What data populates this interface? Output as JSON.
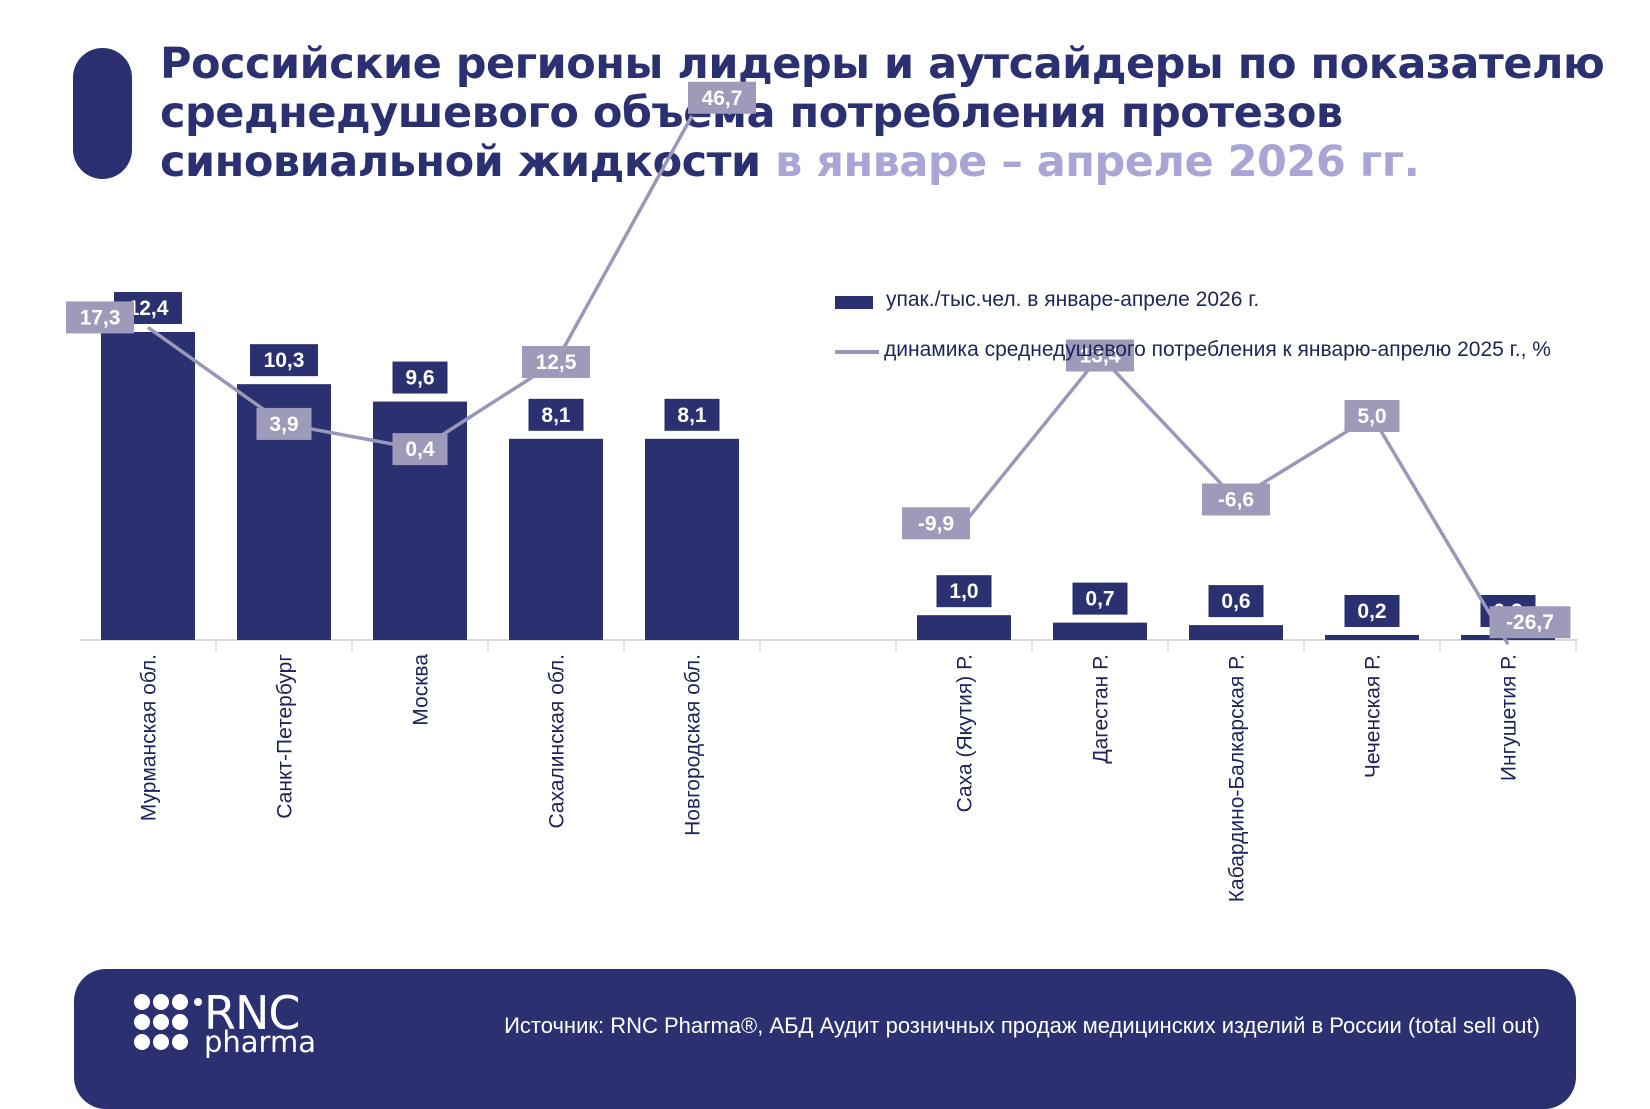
{
  "header": {
    "title_main": "Российские регионы лидеры и аутсайдеры по показателю среднедушевого объёма потребления протезов синовиальной жидкости",
    "title_highlight": "в январе – апреле 2026 гг."
  },
  "legend": {
    "bar_label": "упак./тыс.чел. в январе-апреле 2026 г.",
    "line_label": "динамика среднедушевого потребления к январю-апрелю 2025 г., %"
  },
  "chart_data": {
    "type": "bar",
    "title": "Российские регионы лидеры и аутсайдеры по показателю среднедушевого объёма потребления протезов синовиальной жидкости в январе – апреле 2026 гг.",
    "categories": [
      "Мурманская обл.",
      "Санкт-Петербург",
      "Москва",
      "Сахалинская обл.",
      "Новгородская обл.",
      "",
      "Саха (Якутия) Р.",
      "Дагестан Р.",
      "Кабардино-Балкарская Р.",
      "Чеченская Р.",
      "Ингушетия Р."
    ],
    "series": [
      {
        "name": "упак./тыс.чел. в январе-апреле 2026 г.",
        "type": "bar",
        "values": [
          12.4,
          10.3,
          9.6,
          8.1,
          8.1,
          null,
          1.0,
          0.7,
          0.6,
          0.2,
          0.2
        ],
        "labels": [
          "12,4",
          "10,3",
          "9,6",
          "8,1",
          "8,1",
          "",
          "1,0",
          "0,7",
          "0,6",
          "0,2",
          "0,2"
        ]
      },
      {
        "name": "динамика среднедушевого потребления к январю-апрелю 2025 г., %",
        "type": "line",
        "values": [
          17.3,
          3.9,
          0.4,
          12.5,
          46.7,
          null,
          -9.9,
          13.4,
          -6.6,
          5.0,
          -26.7
        ],
        "labels": [
          "17,3",
          "3,9",
          "0,4",
          "12,5",
          "46,7",
          "",
          "-9,9",
          "13,4",
          "-6,6",
          "5,0",
          "-26,7"
        ]
      }
    ],
    "colors": {
      "bar": "#2b3170",
      "line": "#9a98b8",
      "label_line_bg": "#9d9bb9",
      "axis": "#d9d9d9"
    }
  },
  "footer": {
    "logo_rnc": "RNC",
    "logo_pharma": "pharma",
    "source": "Источник: RNC Pharma®, АБД Аудит розничных продаж медицинских изделий в России (total sell out)"
  }
}
